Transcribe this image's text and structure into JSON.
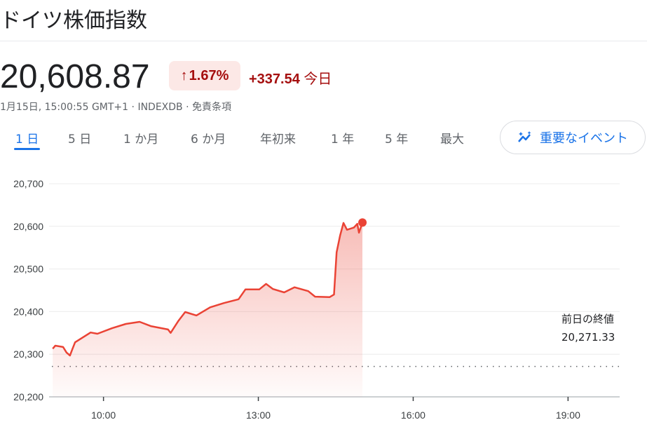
{
  "title": "ドイツ株価指数",
  "price": "20,608.87",
  "change_pct": "1.67%",
  "change_abs": "+337.54",
  "change_period": "今日",
  "meta": {
    "timestamp": "1月15日, 15:00:55 GMT+1",
    "source": "INDEXDB",
    "disclaimer": "免責条項"
  },
  "tabs": [
    {
      "label": "1 日",
      "active": true
    },
    {
      "label": "5 日"
    },
    {
      "label": "1 か月"
    },
    {
      "label": "6 か月"
    },
    {
      "label": "年初来"
    },
    {
      "label": "1 年"
    },
    {
      "label": "5 年"
    },
    {
      "label": "最大"
    }
  ],
  "events_button": {
    "label": "重要なイベント",
    "icon": "insights-icon"
  },
  "colors": {
    "up": "#a50e0e",
    "line": "#ea4335",
    "accent": "#1a73e8"
  },
  "chart_data": {
    "type": "area",
    "xlim": [
      "09:00",
      "20:00"
    ],
    "ylim": [
      20200,
      20700
    ],
    "x_ticks": [
      "10:00",
      "13:00",
      "16:00",
      "19:00"
    ],
    "y_ticks": [
      "20,700",
      "20,600",
      "20,500",
      "20,400",
      "20,300",
      "20,200"
    ],
    "grid": true,
    "reference_line": {
      "label": "前日の終値",
      "value": 20271.33,
      "value_label": "20,271.33"
    },
    "points": [
      [
        "09:01",
        20313
      ],
      [
        "09:04",
        20320
      ],
      [
        "09:13",
        20317
      ],
      [
        "09:17",
        20304
      ],
      [
        "09:21",
        20297
      ],
      [
        "09:24",
        20313
      ],
      [
        "09:27",
        20328
      ],
      [
        "09:45",
        20351
      ],
      [
        "09:53",
        20348
      ],
      [
        "10:10",
        20361
      ],
      [
        "10:26",
        20371
      ],
      [
        "10:42",
        20376
      ],
      [
        "10:55",
        20366
      ],
      [
        "11:15",
        20358
      ],
      [
        "11:18",
        20350
      ],
      [
        "11:27",
        20378
      ],
      [
        "11:35",
        20399
      ],
      [
        "11:48",
        20391
      ],
      [
        "12:04",
        20410
      ],
      [
        "12:20",
        20420
      ],
      [
        "12:37",
        20429
      ],
      [
        "12:45",
        20452
      ],
      [
        "13:01",
        20452
      ],
      [
        "13:09",
        20465
      ],
      [
        "13:17",
        20453
      ],
      [
        "13:30",
        20445
      ],
      [
        "13:42",
        20457
      ],
      [
        "13:58",
        20448
      ],
      [
        "14:06",
        20435
      ],
      [
        "14:23",
        20434
      ],
      [
        "14:28",
        20440
      ],
      [
        "14:31",
        20539
      ],
      [
        "14:35",
        20578
      ],
      [
        "14:39",
        20608
      ],
      [
        "14:43",
        20592
      ],
      [
        "14:51",
        20597
      ],
      [
        "14:55",
        20606
      ],
      [
        "14:57",
        20585
      ],
      [
        "15:01",
        20608.87
      ]
    ]
  }
}
